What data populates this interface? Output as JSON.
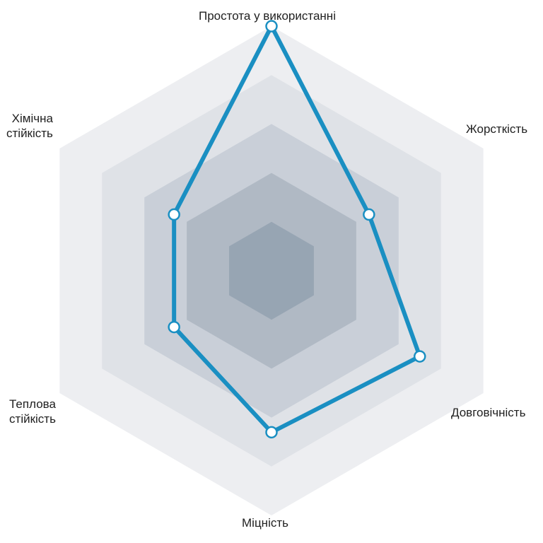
{
  "chart_data": {
    "type": "radar",
    "title": "",
    "axes": [
      "Простота у використанні",
      "Жорсткість",
      "Довговічність",
      "Міцність",
      "Теплова\nстійкість",
      "Хімічна\nстійкість"
    ],
    "levels": 5,
    "range": [
      0,
      5
    ],
    "series": [
      {
        "name": "",
        "values": [
          5,
          2.3,
          3.5,
          3.3,
          2.3,
          2.3
        ]
      }
    ],
    "colors": {
      "series_line": "#1a8fc2",
      "marker_fill": "#ffffff",
      "rings": [
        "#edeef1",
        "#dfe2e7",
        "#c9cfd8",
        "#b0b9c4",
        "#97a5b3"
      ]
    }
  }
}
